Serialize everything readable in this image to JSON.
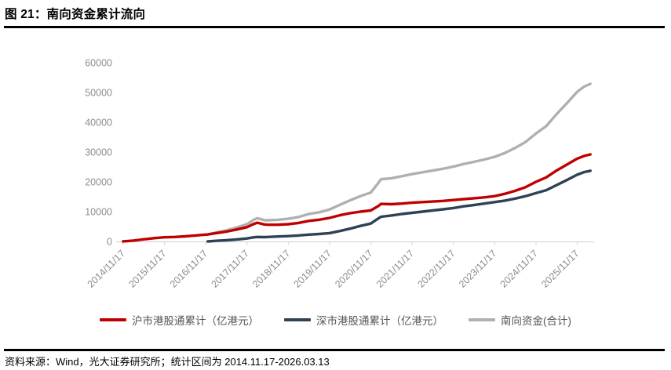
{
  "header": {
    "title": "图 21：南向资金累计流向"
  },
  "footer": {
    "source": "资料来源：Wind，光大证券研究所；统计区间为 2014.11.17-2026.03.13"
  },
  "colors": {
    "red": "#C00000",
    "navy": "#2E4254",
    "gray": "#B0B0B0",
    "axis_text": "#8C8C8C",
    "axis_line": "#D9D9D9",
    "rule": "#000000"
  },
  "chart_data": {
    "type": "line",
    "title": "南向资金累计流向",
    "xlabel": "",
    "ylabel": "",
    "ylim": [
      0,
      60000
    ],
    "y_ticks": [
      0,
      10000,
      20000,
      30000,
      40000,
      50000,
      60000
    ],
    "x_tick_labels": [
      "2014/11/17",
      "2015/11/17",
      "2016/11/17",
      "2017/11/17",
      "2018/11/17",
      "2019/11/17",
      "2020/11/17",
      "2021/11/17",
      "2022/11/17",
      "2023/11/17",
      "2024/11/17",
      "2025/11/17"
    ],
    "grid": false,
    "legend_position": "bottom",
    "x_years": [
      2014.88,
      2015.13,
      2015.38,
      2015.63,
      2015.88,
      2016.13,
      2016.38,
      2016.63,
      2016.88,
      2016.93,
      2017.13,
      2017.38,
      2017.63,
      2017.88,
      2018.05,
      2018.13,
      2018.3,
      2018.38,
      2018.63,
      2018.88,
      2019.13,
      2019.38,
      2019.63,
      2019.88,
      2020.13,
      2020.38,
      2020.63,
      2020.88,
      2021.05,
      2021.13,
      2021.38,
      2021.63,
      2021.88,
      2022.13,
      2022.38,
      2022.63,
      2022.88,
      2023.13,
      2023.38,
      2023.63,
      2023.88,
      2024.13,
      2024.38,
      2024.63,
      2024.88,
      2025.13,
      2025.38,
      2025.63,
      2025.88,
      2026.05,
      2026.2
    ],
    "series": [
      {
        "name": "沪市港股通累计（亿港元）",
        "color": "#C00000",
        "values": [
          30,
          300,
          700,
          1100,
          1400,
          1500,
          1700,
          2000,
          2300,
          2350,
          2800,
          3300,
          4000,
          4800,
          5900,
          6300,
          5700,
          5600,
          5600,
          5800,
          6200,
          6900,
          7300,
          7900,
          8800,
          9500,
          10000,
          10400,
          11800,
          12600,
          12500,
          12700,
          13000,
          13200,
          13400,
          13600,
          13900,
          14200,
          14500,
          14800,
          15200,
          16000,
          17000,
          18200,
          20000,
          21500,
          23800,
          25800,
          27800,
          28700,
          29200
        ]
      },
      {
        "name": "深市港股通累计（亿港元）",
        "color": "#2E4254",
        "values": [
          null,
          null,
          null,
          null,
          null,
          null,
          null,
          null,
          null,
          0,
          200,
          400,
          650,
          1000,
          1400,
          1500,
          1450,
          1500,
          1650,
          1800,
          2000,
          2300,
          2500,
          2800,
          3500,
          4300,
          5200,
          6000,
          7600,
          8300,
          8700,
          9200,
          9600,
          10000,
          10400,
          10800,
          11200,
          11800,
          12200,
          12700,
          13200,
          13700,
          14400,
          15200,
          16200,
          17200,
          18900,
          20600,
          22400,
          23300,
          23700
        ]
      },
      {
        "name": "南向资金(合计)",
        "color": "#B0B0B0",
        "values": [
          null,
          null,
          null,
          null,
          null,
          null,
          null,
          null,
          null,
          2350,
          3000,
          3700,
          4650,
          5800,
          7300,
          7800,
          7150,
          7100,
          7250,
          7600,
          8200,
          9200,
          9800,
          10700,
          12300,
          13800,
          15200,
          16400,
          19400,
          20900,
          21200,
          21900,
          22600,
          23200,
          23800,
          24400,
          25100,
          26000,
          26700,
          27500,
          28400,
          29700,
          31400,
          33400,
          36200,
          38700,
          42700,
          46400,
          50200,
          52000,
          52900
        ]
      }
    ]
  }
}
